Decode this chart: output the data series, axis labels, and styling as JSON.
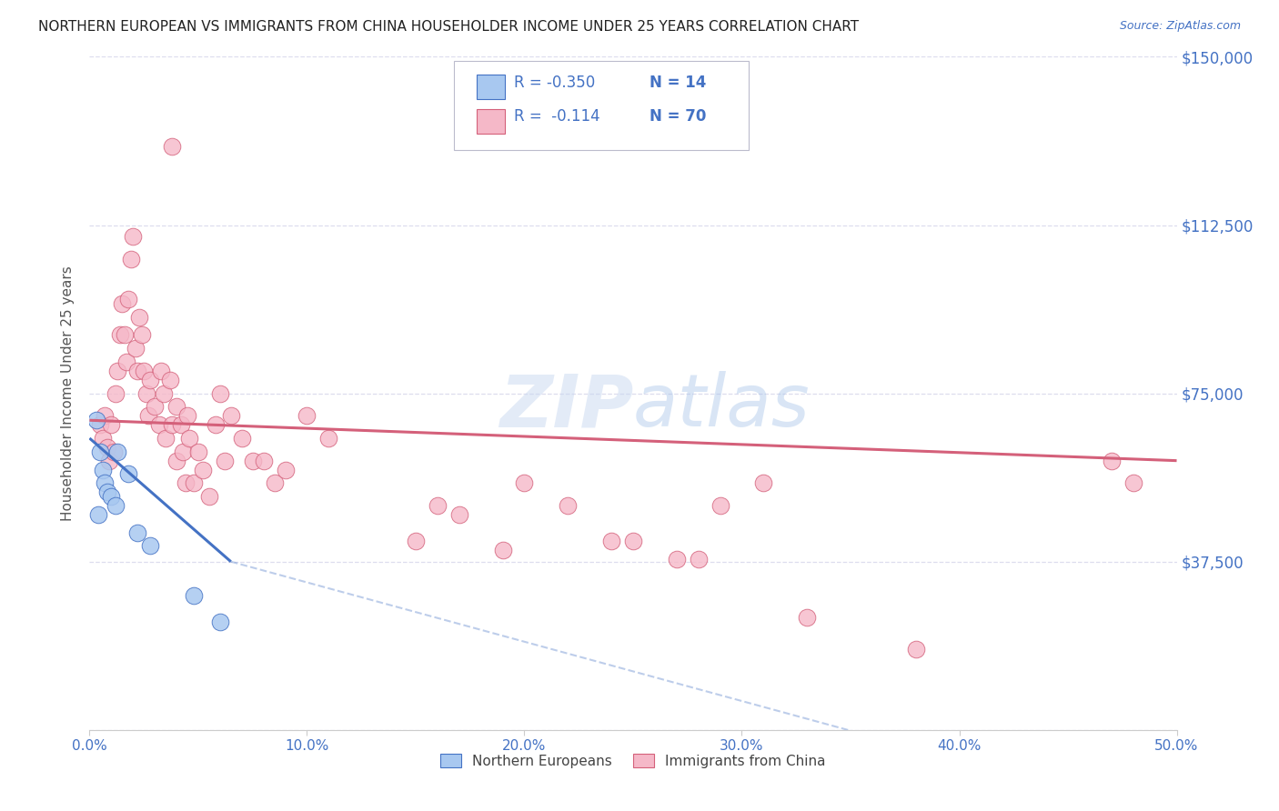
{
  "title": "NORTHERN EUROPEAN VS IMMIGRANTS FROM CHINA HOUSEHOLDER INCOME UNDER 25 YEARS CORRELATION CHART",
  "source": "Source: ZipAtlas.com",
  "ylabel": "Householder Income Under 25 years",
  "xlim": [
    0,
    0.5
  ],
  "ylim": [
    0,
    150000
  ],
  "yticks": [
    0,
    37500,
    75000,
    112500,
    150000
  ],
  "ytick_labels": [
    "",
    "$37,500",
    "$75,000",
    "$112,500",
    "$150,000"
  ],
  "xtick_labels": [
    "0.0%",
    "10.0%",
    "20.0%",
    "30.0%",
    "40.0%",
    "50.0%"
  ],
  "xticks": [
    0.0,
    0.1,
    0.2,
    0.3,
    0.4,
    0.5
  ],
  "legend_r_blue": "-0.350",
  "legend_n_blue": "14",
  "legend_r_pink": "-0.114",
  "legend_n_pink": "70",
  "watermark": "ZIPatlas",
  "blue_color": "#A8C8F0",
  "pink_color": "#F5B8C8",
  "blue_line_color": "#4472C4",
  "pink_line_color": "#D4607A",
  "blue_scatter": [
    [
      0.003,
      69000
    ],
    [
      0.005,
      62000
    ],
    [
      0.006,
      58000
    ],
    [
      0.007,
      55000
    ],
    [
      0.008,
      53000
    ],
    [
      0.01,
      52000
    ],
    [
      0.012,
      50000
    ],
    [
      0.013,
      62000
    ],
    [
      0.018,
      57000
    ],
    [
      0.022,
      44000
    ],
    [
      0.028,
      41000
    ],
    [
      0.048,
      30000
    ],
    [
      0.06,
      24000
    ],
    [
      0.004,
      48000
    ]
  ],
  "pink_scatter": [
    [
      0.005,
      68000
    ],
    [
      0.006,
      65000
    ],
    [
      0.007,
      70000
    ],
    [
      0.008,
      63000
    ],
    [
      0.009,
      60000
    ],
    [
      0.01,
      68000
    ],
    [
      0.011,
      62000
    ],
    [
      0.012,
      75000
    ],
    [
      0.013,
      80000
    ],
    [
      0.014,
      88000
    ],
    [
      0.015,
      95000
    ],
    [
      0.016,
      88000
    ],
    [
      0.017,
      82000
    ],
    [
      0.018,
      96000
    ],
    [
      0.019,
      105000
    ],
    [
      0.02,
      110000
    ],
    [
      0.021,
      85000
    ],
    [
      0.022,
      80000
    ],
    [
      0.023,
      92000
    ],
    [
      0.024,
      88000
    ],
    [
      0.025,
      80000
    ],
    [
      0.026,
      75000
    ],
    [
      0.027,
      70000
    ],
    [
      0.028,
      78000
    ],
    [
      0.03,
      72000
    ],
    [
      0.032,
      68000
    ],
    [
      0.033,
      80000
    ],
    [
      0.034,
      75000
    ],
    [
      0.035,
      65000
    ],
    [
      0.037,
      78000
    ],
    [
      0.038,
      130000
    ],
    [
      0.038,
      68000
    ],
    [
      0.04,
      72000
    ],
    [
      0.04,
      60000
    ],
    [
      0.042,
      68000
    ],
    [
      0.043,
      62000
    ],
    [
      0.044,
      55000
    ],
    [
      0.045,
      70000
    ],
    [
      0.046,
      65000
    ],
    [
      0.048,
      55000
    ],
    [
      0.05,
      62000
    ],
    [
      0.052,
      58000
    ],
    [
      0.055,
      52000
    ],
    [
      0.058,
      68000
    ],
    [
      0.06,
      75000
    ],
    [
      0.062,
      60000
    ],
    [
      0.065,
      70000
    ],
    [
      0.07,
      65000
    ],
    [
      0.075,
      60000
    ],
    [
      0.08,
      60000
    ],
    [
      0.085,
      55000
    ],
    [
      0.09,
      58000
    ],
    [
      0.1,
      70000
    ],
    [
      0.11,
      65000
    ],
    [
      0.15,
      42000
    ],
    [
      0.16,
      50000
    ],
    [
      0.17,
      48000
    ],
    [
      0.19,
      40000
    ],
    [
      0.2,
      55000
    ],
    [
      0.22,
      50000
    ],
    [
      0.24,
      42000
    ],
    [
      0.25,
      42000
    ],
    [
      0.27,
      38000
    ],
    [
      0.28,
      38000
    ],
    [
      0.29,
      50000
    ],
    [
      0.31,
      55000
    ],
    [
      0.33,
      25000
    ],
    [
      0.38,
      18000
    ],
    [
      0.47,
      60000
    ],
    [
      0.48,
      55000
    ]
  ],
  "blue_line": [
    [
      0.0,
      65000
    ],
    [
      0.065,
      37500
    ]
  ],
  "blue_dash_line": [
    [
      0.065,
      37500
    ],
    [
      0.5,
      -20000
    ]
  ],
  "pink_line": [
    [
      0.0,
      69000
    ],
    [
      0.5,
      60000
    ]
  ],
  "background_color": "#FFFFFF",
  "grid_color": "#DDDDEE",
  "axis_label_color": "#555555",
  "right_tick_color": "#4472C4"
}
